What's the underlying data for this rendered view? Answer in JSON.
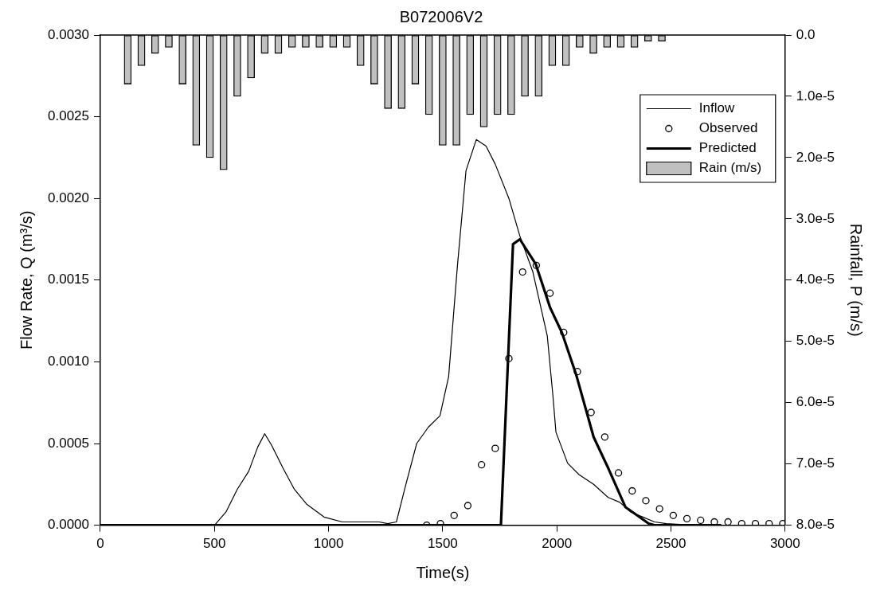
{
  "chart_data": {
    "type": "line",
    "title": "B072006V2",
    "xlabel": "Time(s)",
    "ylabel": "Flow Rate, Q (m³/s)",
    "y2label": "Rainfall, P (m/s)",
    "xlim": [
      0,
      3000
    ],
    "xticks": [
      0,
      500,
      1000,
      1500,
      2000,
      2500,
      3000
    ],
    "ylim": [
      0,
      0.003
    ],
    "yticks": [
      {
        "value": 0,
        "label": "0.0000"
      },
      {
        "value": 0.0005,
        "label": "0.0005"
      },
      {
        "value": 0.001,
        "label": "0.0010"
      },
      {
        "value": 0.0015,
        "label": "0.0015"
      },
      {
        "value": 0.002,
        "label": "0.0020"
      },
      {
        "value": 0.0025,
        "label": "0.0025"
      },
      {
        "value": 0.003,
        "label": "0.0030"
      }
    ],
    "y2lim": [
      8e-05,
      0
    ],
    "y2ticks": [
      {
        "value": 0,
        "label": "0.0"
      },
      {
        "value": 1e-05,
        "label": "1.0e-5"
      },
      {
        "value": 2e-05,
        "label": "2.0e-5"
      },
      {
        "value": 3e-05,
        "label": "3.0e-5"
      },
      {
        "value": 4e-05,
        "label": "4.0e-5"
      },
      {
        "value": 5e-05,
        "label": "5.0e-5"
      },
      {
        "value": 6e-05,
        "label": "6.0e-5"
      },
      {
        "value": 7e-05,
        "label": "7.0e-5"
      },
      {
        "value": 8e-05,
        "label": "8.0e-5"
      }
    ],
    "grid": false,
    "legend": "top right",
    "series": [
      {
        "name": "Inflow",
        "color": "#000000",
        "marker": "none",
        "x": [
          0,
          500,
          550,
          600,
          650,
          690,
          720,
          750,
          800,
          850,
          903,
          980,
          1060,
          1158,
          1221,
          1259,
          1297,
          1335,
          1386,
          1437,
          1488,
          1526,
          1564,
          1602,
          1647,
          1690,
          1730,
          1790,
          1838,
          1895,
          1958,
          1983,
          1996,
          2047,
          2097,
          2161,
          2225,
          2276,
          2325,
          2377,
          2428,
          2480,
          2600,
          2720
        ],
        "values": [
          0,
          0,
          8e-05,
          0.00022,
          0.00033,
          0.00048,
          0.00056,
          0.00049,
          0.00035,
          0.00022,
          0.00013,
          5e-05,
          2e-05,
          2e-05,
          2e-05,
          1e-05,
          2e-05,
          0.00023,
          0.0005,
          0.0006,
          0.00067,
          0.00091,
          0.00158,
          0.00217,
          0.00236,
          0.00232,
          0.00221,
          0.002,
          0.00177,
          0.00155,
          0.00116,
          0.00079,
          0.00057,
          0.00038,
          0.00031,
          0.00025,
          0.00017,
          0.00014,
          8e-05,
          5e-05,
          2e-05,
          1e-05,
          0,
          0
        ]
      },
      {
        "name": "Observed",
        "type": "scatter",
        "color": "#000000",
        "marker": "circle",
        "x": [
          1430,
          1490,
          1550,
          1610,
          1670,
          1730,
          1790,
          1850,
          1910,
          1970,
          2030,
          2090,
          2150,
          2210,
          2270,
          2330,
          2390,
          2450,
          2510,
          2570,
          2630,
          2690,
          2750,
          2810,
          2870,
          2930,
          2990
        ],
        "values": [
          0,
          1e-05,
          6e-05,
          0.00012,
          0.00037,
          0.00047,
          0.00102,
          0.00155,
          0.00159,
          0.00142,
          0.00118,
          0.00094,
          0.00069,
          0.00054,
          0.00032,
          0.00021,
          0.00015,
          0.0001,
          6e-05,
          4e-05,
          3e-05,
          2e-05,
          2e-05,
          1e-05,
          1e-05,
          1e-05,
          1e-05
        ]
      },
      {
        "name": "Predicted",
        "color": "#000000",
        "marker": "none",
        "x": [
          0,
          1755,
          1808,
          1838,
          1907,
          1971,
          2022,
          2085,
          2161,
          2225,
          2301,
          2352,
          2402,
          2428,
          2720
        ],
        "values": [
          0,
          0,
          0.00172,
          0.00175,
          0.0016,
          0.00133,
          0.00118,
          0.00092,
          0.00054,
          0.00035,
          0.00011,
          6e-05,
          1e-05,
          0,
          0
        ]
      },
      {
        "name": "Rain (m/s)",
        "type": "bar",
        "axis": "y2",
        "color": "#c0c0c0",
        "x": [
          120,
          180,
          240,
          300,
          360,
          420,
          480,
          540,
          600,
          660,
          720,
          780,
          840,
          900,
          960,
          1020,
          1080,
          1140,
          1200,
          1260,
          1320,
          1380,
          1440,
          1500,
          1560,
          1620,
          1680,
          1740,
          1800,
          1860,
          1920,
          1980,
          2040,
          2100,
          2160,
          2220,
          2280,
          2340,
          2400,
          2460
        ],
        "values": [
          8e-06,
          5e-06,
          3e-06,
          2e-06,
          8e-06,
          1.8e-05,
          2e-05,
          2.2e-05,
          1e-05,
          7e-06,
          3e-06,
          3e-06,
          2e-06,
          2e-06,
          2e-06,
          2e-06,
          2e-06,
          5e-06,
          8e-06,
          1.2e-05,
          1.2e-05,
          8e-06,
          1.3e-05,
          1.8e-05,
          1.8e-05,
          1.3e-05,
          1.5e-05,
          1.3e-05,
          1.3e-05,
          1e-05,
          1e-05,
          5e-06,
          5e-06,
          2e-06,
          3e-06,
          2e-06,
          2e-06,
          2e-06,
          1e-06,
          1e-06
        ]
      }
    ]
  }
}
